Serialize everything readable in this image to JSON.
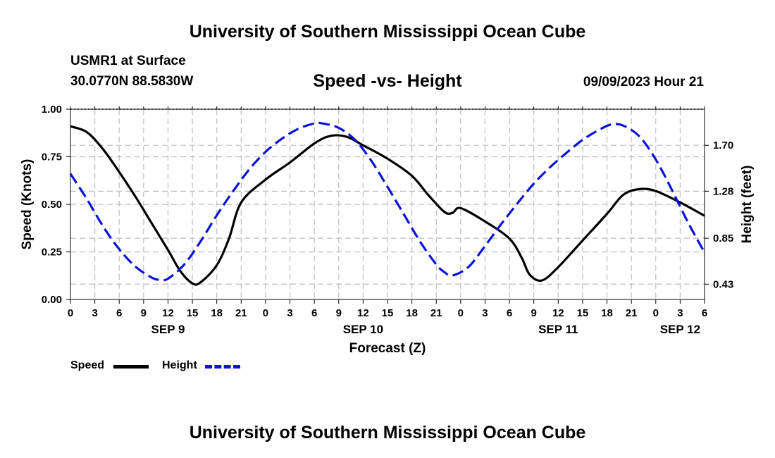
{
  "header": {
    "title": "University of Southern Mississippi Ocean Cube",
    "station": "USMR1 at Surface",
    "coords": "30.0770N  88.5830W",
    "subtitle": "Speed -vs- Height",
    "datetime": "09/09/2023 Hour 21"
  },
  "footer": {
    "title": "University of Southern Mississippi Ocean Cube"
  },
  "legend": {
    "speed_label": "Speed",
    "height_label": "Height"
  },
  "colors": {
    "speed": "#000000",
    "height": "#0a14d8",
    "grid": "#bdbdbd"
  },
  "chart_data": {
    "type": "line",
    "title": "Speed -vs- Height",
    "xlabel": "Forecast (Z)",
    "ylabel": "Speed (Knots)",
    "y2label": "Height (feet)",
    "x_range_hours": [
      0,
      78
    ],
    "x_ticks": [
      {
        "h": 0,
        "label": "0"
      },
      {
        "h": 3,
        "label": "3"
      },
      {
        "h": 6,
        "label": "6"
      },
      {
        "h": 9,
        "label": "9"
      },
      {
        "h": 12,
        "label": "12"
      },
      {
        "h": 15,
        "label": "15"
      },
      {
        "h": 18,
        "label": "18"
      },
      {
        "h": 21,
        "label": "21"
      },
      {
        "h": 24,
        "label": "0"
      },
      {
        "h": 27,
        "label": "3"
      },
      {
        "h": 30,
        "label": "6"
      },
      {
        "h": 33,
        "label": "9"
      },
      {
        "h": 36,
        "label": "12"
      },
      {
        "h": 39,
        "label": "15"
      },
      {
        "h": 42,
        "label": "18"
      },
      {
        "h": 45,
        "label": "21"
      },
      {
        "h": 48,
        "label": "0"
      },
      {
        "h": 51,
        "label": "3"
      },
      {
        "h": 54,
        "label": "6"
      },
      {
        "h": 57,
        "label": "9"
      },
      {
        "h": 60,
        "label": "12"
      },
      {
        "h": 63,
        "label": "15"
      },
      {
        "h": 66,
        "label": "18"
      },
      {
        "h": 69,
        "label": "21"
      },
      {
        "h": 72,
        "label": "0"
      },
      {
        "h": 75,
        "label": "3"
      },
      {
        "h": 78,
        "label": "6"
      }
    ],
    "date_labels": [
      {
        "h": 12,
        "label": "SEP 9"
      },
      {
        "h": 36,
        "label": "SEP 10"
      },
      {
        "h": 60,
        "label": "SEP 11"
      },
      {
        "h": 75,
        "label": "SEP 12"
      }
    ],
    "y_left": {
      "min": 0,
      "max": 1,
      "ticks": [
        {
          "v": 0,
          "label": "0.00"
        },
        {
          "v": 0.25,
          "label": "0.25"
        },
        {
          "v": 0.5,
          "label": "0.50"
        },
        {
          "v": 0.75,
          "label": "0.75"
        },
        {
          "v": 1,
          "label": "1.00"
        }
      ]
    },
    "y_right": {
      "min": 0.29,
      "max": 2.03,
      "ticks": [
        {
          "v": 0.43,
          "label": "0.43"
        },
        {
          "v": 0.85,
          "label": "0.85"
        },
        {
          "v": 1.28,
          "label": "1.28"
        },
        {
          "v": 1.7,
          "label": "1.70"
        }
      ]
    },
    "series": [
      {
        "name": "Speed",
        "axis": "left",
        "style": "solid",
        "x": [
          0,
          2,
          4,
          6,
          8,
          10,
          12,
          13.5,
          15,
          16,
          18,
          19.5,
          21,
          24,
          27,
          30,
          32,
          34,
          36,
          39,
          42,
          44,
          46,
          47,
          48,
          51,
          54,
          55.5,
          56.5,
          58,
          60,
          63,
          66,
          68,
          70,
          72,
          75,
          78
        ],
        "values": [
          0.91,
          0.88,
          0.79,
          0.67,
          0.54,
          0.4,
          0.26,
          0.15,
          0.085,
          0.09,
          0.18,
          0.32,
          0.51,
          0.63,
          0.72,
          0.82,
          0.86,
          0.855,
          0.81,
          0.74,
          0.65,
          0.55,
          0.46,
          0.455,
          0.48,
          0.41,
          0.32,
          0.22,
          0.13,
          0.1,
          0.17,
          0.31,
          0.45,
          0.55,
          0.58,
          0.57,
          0.51,
          0.44
        ]
      },
      {
        "name": "Height",
        "axis": "right",
        "style": "dashed",
        "x": [
          0,
          2,
          4,
          6,
          8,
          10,
          11,
          12,
          14,
          16,
          18,
          20,
          22,
          24,
          26,
          28,
          30,
          31,
          33,
          35,
          37,
          39,
          41,
          43,
          45,
          46,
          47,
          49,
          51,
          53,
          55,
          57,
          59,
          61,
          63,
          65,
          66.5,
          68,
          70,
          72,
          74,
          76,
          78
        ],
        "values": [
          1.44,
          1.21,
          0.96,
          0.75,
          0.59,
          0.49,
          0.47,
          0.48,
          0.61,
          0.82,
          1.06,
          1.28,
          1.48,
          1.64,
          1.76,
          1.85,
          1.9,
          1.9,
          1.86,
          1.75,
          1.56,
          1.32,
          1.07,
          0.82,
          0.61,
          0.54,
          0.51,
          0.59,
          0.78,
          0.98,
          1.17,
          1.35,
          1.5,
          1.63,
          1.75,
          1.84,
          1.89,
          1.88,
          1.78,
          1.57,
          1.29,
          0.99,
          0.72
        ]
      }
    ]
  }
}
